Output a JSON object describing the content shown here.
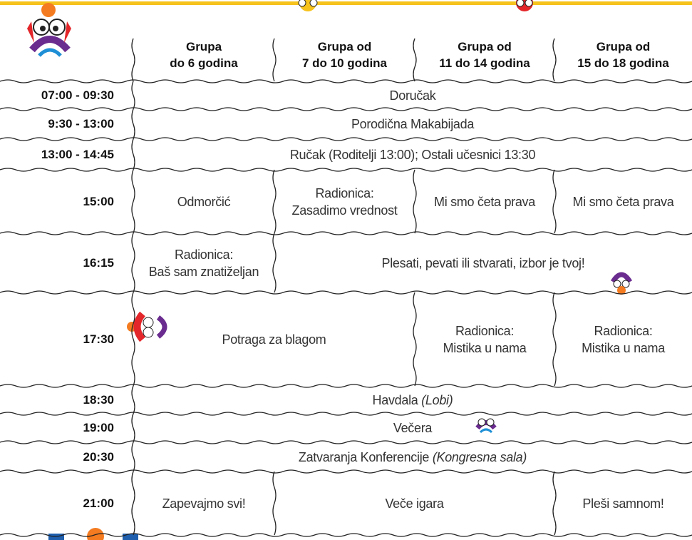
{
  "header": {
    "columns": [
      {
        "lines": [
          "Grupa",
          "do 6 godina"
        ]
      },
      {
        "lines": [
          "Grupa od",
          "7 do 10 godina"
        ]
      },
      {
        "lines": [
          "Grupa od",
          "11 do 14 godina"
        ]
      },
      {
        "lines": [
          "Grupa od",
          "15 do 18 godina"
        ]
      }
    ]
  },
  "rows": [
    {
      "time": "07:00 - 09:30",
      "cells": [
        {
          "span": 4,
          "lines": [
            "Doručak"
          ]
        }
      ]
    },
    {
      "time": "9:30 - 13:00",
      "cells": [
        {
          "span": 4,
          "lines": [
            "Porodična Makabijada"
          ]
        }
      ]
    },
    {
      "time": "13:00 - 14:45",
      "cells": [
        {
          "span": 4,
          "lines": [
            "Ručak (Roditelji 13:00); Ostali učesnici 13:30"
          ]
        }
      ]
    },
    {
      "time": "15:00",
      "cells": [
        {
          "span": 1,
          "lines": [
            "Odmorčić"
          ]
        },
        {
          "span": 1,
          "lines": [
            "Radionica:",
            "Zasadimo vrednost"
          ]
        },
        {
          "span": 1,
          "lines": [
            "Mi smo četa prava"
          ]
        },
        {
          "span": 1,
          "lines": [
            "Mi smo četa prava"
          ]
        }
      ]
    },
    {
      "time": "16:15",
      "cells": [
        {
          "span": 1,
          "lines": [
            "Radionica:",
            "Baš sam znatiželjan"
          ]
        },
        {
          "span": 3,
          "lines": [
            "Plesati, pevati ili stvarati, izbor je tvoj!"
          ]
        }
      ]
    },
    {
      "time": "17:30",
      "cells": [
        {
          "span": 2,
          "lines": [
            "Potraga za blagom"
          ]
        },
        {
          "span": 1,
          "lines": [
            "Radionica:",
            "Mistika u nama"
          ]
        },
        {
          "span": 1,
          "lines": [
            "Radionica:",
            "Mistika u nama"
          ]
        }
      ]
    },
    {
      "time": "18:30",
      "cells": [
        {
          "span": 4,
          "lines": [
            "Havdala"
          ],
          "note": "(Lobi)"
        }
      ]
    },
    {
      "time": "19:00",
      "cells": [
        {
          "span": 4,
          "lines": [
            "Večera"
          ]
        }
      ]
    },
    {
      "time": "20:30",
      "cells": [
        {
          "span": 4,
          "lines": [
            "Zatvaranja Konferencije"
          ],
          "note": "(Kongresna sala)"
        }
      ]
    },
    {
      "time": "21:00",
      "cells": [
        {
          "span": 1,
          "lines": [
            "Zapevajmo svi!"
          ]
        },
        {
          "span": 2,
          "lines": [
            "Veče igara"
          ]
        },
        {
          "span": 1,
          "lines": [
            "Pleši samnom!"
          ]
        }
      ]
    }
  ]
}
